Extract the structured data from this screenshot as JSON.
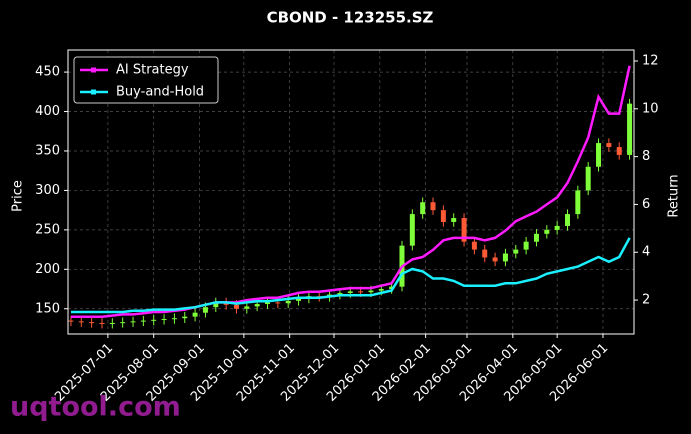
{
  "chart_data": {
    "type": "candlestick",
    "title": "CBOND - 123255.SZ",
    "ylabel": "Price",
    "y2label": "Return",
    "watermark": "uqtool.com",
    "x": [
      "2025-06-06",
      "2025-06-13",
      "2025-06-20",
      "2025-06-27",
      "2025-07-04",
      "2025-07-11",
      "2025-07-18",
      "2025-07-25",
      "2025-08-01",
      "2025-08-08",
      "2025-08-15",
      "2025-08-22",
      "2025-08-29",
      "2025-09-05",
      "2025-09-12",
      "2025-09-19",
      "2025-09-26",
      "2025-10-03",
      "2025-10-10",
      "2025-10-17",
      "2025-10-24",
      "2025-10-31",
      "2025-11-07",
      "2025-11-14",
      "2025-11-21",
      "2025-11-28",
      "2025-12-05",
      "2025-12-12",
      "2025-12-19",
      "2025-12-26",
      "2026-01-02",
      "2026-01-09",
      "2026-01-16",
      "2026-01-23",
      "2026-01-30",
      "2026-02-06",
      "2026-02-13",
      "2026-02-20",
      "2026-02-27",
      "2026-03-06",
      "2026-03-13",
      "2026-03-20",
      "2026-03-27",
      "2026-04-03",
      "2026-04-10",
      "2026-04-17",
      "2026-04-24",
      "2026-05-01",
      "2026-05-08",
      "2026-05-15",
      "2026-05-22",
      "2026-05-29",
      "2026-06-05",
      "2026-06-12",
      "2026-06-19"
    ],
    "open": [
      135,
      134,
      133,
      132,
      131,
      132,
      133,
      134,
      135,
      136,
      137,
      138,
      140,
      145,
      152,
      158,
      155,
      150,
      153,
      156,
      158,
      157,
      160,
      163,
      166,
      165,
      168,
      170,
      172,
      171,
      173,
      175,
      178,
      230,
      270,
      285,
      275,
      260,
      265,
      235,
      225,
      215,
      210,
      220,
      225,
      235,
      245,
      250,
      255,
      270,
      300,
      330,
      360,
      355,
      345
    ],
    "high": [
      141,
      140,
      139,
      138,
      138,
      139,
      140,
      141,
      142,
      143,
      144,
      146,
      151,
      158,
      164,
      164,
      161,
      159,
      162,
      164,
      164,
      166,
      169,
      172,
      172,
      174,
      176,
      178,
      178,
      179,
      181,
      184,
      236,
      276,
      291,
      291,
      281,
      271,
      271,
      241,
      231,
      221,
      226,
      231,
      241,
      251,
      256,
      261,
      276,
      306,
      336,
      366,
      366,
      361,
      416
    ],
    "low": [
      128,
      127,
      126,
      125,
      125,
      126,
      127,
      128,
      129,
      130,
      131,
      132,
      134,
      139,
      146,
      149,
      144,
      144,
      147,
      150,
      151,
      151,
      154,
      157,
      159,
      159,
      162,
      164,
      165,
      165,
      167,
      169,
      172,
      224,
      264,
      269,
      254,
      254,
      229,
      219,
      209,
      204,
      204,
      214,
      219,
      229,
      239,
      244,
      249,
      264,
      294,
      324,
      349,
      339,
      339
    ],
    "close": [
      134,
      133,
      132,
      131,
      132,
      133,
      134,
      135,
      136,
      137,
      138,
      140,
      145,
      152,
      158,
      155,
      150,
      153,
      156,
      158,
      157,
      160,
      163,
      166,
      165,
      168,
      170,
      172,
      171,
      173,
      175,
      178,
      230,
      270,
      285,
      275,
      260,
      265,
      235,
      225,
      215,
      210,
      220,
      225,
      235,
      245,
      250,
      255,
      270,
      300,
      330,
      360,
      355,
      345,
      410
    ],
    "up_color": "#7fff3a",
    "down_color": "#ff5a36",
    "series": [
      {
        "name": "AI Strategy",
        "color": "#ff1aff",
        "axis": "y2",
        "values": [
          1.3,
          1.3,
          1.3,
          1.3,
          1.35,
          1.4,
          1.4,
          1.45,
          1.5,
          1.5,
          1.55,
          1.6,
          1.7,
          1.8,
          1.9,
          1.9,
          1.9,
          2.0,
          2.05,
          2.1,
          2.1,
          2.2,
          2.3,
          2.35,
          2.35,
          2.4,
          2.45,
          2.5,
          2.5,
          2.5,
          2.6,
          2.7,
          3.4,
          3.7,
          3.8,
          4.1,
          4.5,
          4.6,
          4.6,
          4.6,
          4.5,
          4.6,
          4.9,
          5.3,
          5.5,
          5.7,
          6.0,
          6.3,
          6.9,
          7.8,
          8.8,
          10.5,
          9.8,
          9.8,
          11.8
        ]
      },
      {
        "name": "Buy-and-Hold",
        "color": "#1af0ff",
        "axis": "y2",
        "values": [
          1.5,
          1.5,
          1.5,
          1.5,
          1.5,
          1.5,
          1.55,
          1.55,
          1.6,
          1.6,
          1.6,
          1.65,
          1.7,
          1.8,
          1.9,
          1.9,
          1.85,
          1.9,
          1.95,
          1.95,
          2.0,
          2.05,
          2.1,
          2.1,
          2.1,
          2.15,
          2.2,
          2.2,
          2.2,
          2.2,
          2.3,
          2.4,
          3.1,
          3.3,
          3.2,
          2.9,
          2.9,
          2.8,
          2.6,
          2.6,
          2.6,
          2.6,
          2.7,
          2.7,
          2.8,
          2.9,
          3.1,
          3.2,
          3.3,
          3.4,
          3.6,
          3.8,
          3.6,
          3.8,
          4.6
        ]
      }
    ],
    "xlim": [
      "2025-06-04",
      "2026-06-22"
    ],
    "xticks": [
      "2025-07-01",
      "2025-08-01",
      "2025-09-01",
      "2025-10-01",
      "2025-11-01",
      "2025-12-01",
      "2026-01-01",
      "2026-02-01",
      "2026-03-01",
      "2026-04-01",
      "2026-05-01",
      "2026-06-01"
    ],
    "ylim": [
      118,
      478
    ],
    "yticks": [
      150,
      200,
      250,
      300,
      350,
      400,
      450
    ],
    "y2lim": [
      0.58,
      12.46
    ],
    "y2ticks": [
      2,
      4,
      6,
      8,
      10,
      12
    ],
    "grid": true,
    "legend": "upper left"
  }
}
